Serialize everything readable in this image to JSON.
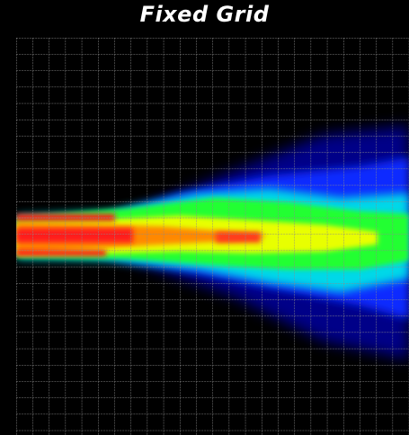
{
  "title": "Fixed Grid"
}
